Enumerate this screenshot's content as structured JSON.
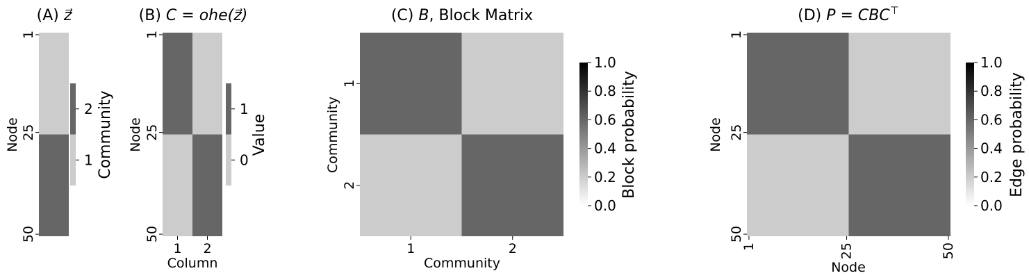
{
  "colors": {
    "low": "#ffffff",
    "high": "#000000"
  },
  "chart_data": [
    {
      "id": "A",
      "type": "heatmap",
      "title_prefix": "(A)",
      "title_math": "z⃗",
      "ylabel": "Node",
      "yticks": [
        "1",
        "25",
        "50"
      ],
      "rows": 50,
      "cols": 1,
      "values": [
        {
          "rows": [
            1,
            25
          ],
          "cols": [
            1,
            1
          ],
          "value": 1
        },
        {
          "rows": [
            26,
            50
          ],
          "cols": [
            1,
            1
          ],
          "value": 2
        }
      ],
      "colorbar": {
        "label": "Community",
        "ticks": [
          "1",
          "2"
        ],
        "levels": [
          1,
          2
        ],
        "fill": [
          0.2,
          0.6
        ]
      }
    },
    {
      "id": "B",
      "type": "heatmap",
      "title_prefix": "(B)",
      "title_math": "C = ohe(z⃗)",
      "ylabel": "Node",
      "xlabel": "Column",
      "yticks": [
        "1",
        "25",
        "50"
      ],
      "xticks": [
        "1",
        "2"
      ],
      "rows": 50,
      "cols": 2,
      "values": [
        {
          "rows": [
            1,
            25
          ],
          "cols": [
            1,
            1
          ],
          "value": 1
        },
        {
          "rows": [
            1,
            25
          ],
          "cols": [
            2,
            2
          ],
          "value": 0
        },
        {
          "rows": [
            26,
            50
          ],
          "cols": [
            1,
            1
          ],
          "value": 0
        },
        {
          "rows": [
            26,
            50
          ],
          "cols": [
            2,
            2
          ],
          "value": 1
        }
      ],
      "colorbar": {
        "label": "Value",
        "ticks": [
          "0",
          "1"
        ],
        "levels": [
          0,
          1
        ],
        "fill": [
          0.2,
          0.6
        ]
      }
    },
    {
      "id": "C",
      "type": "heatmap",
      "title_prefix": "(C)",
      "title_math": "B",
      "title_suffix": ", Block Matrix",
      "ylabel": "Community",
      "xlabel": "Community",
      "yticks": [
        "1",
        "2"
      ],
      "xticks": [
        "1",
        "2"
      ],
      "matrix": [
        [
          0.6,
          0.2
        ],
        [
          0.2,
          0.6
        ]
      ],
      "colorbar": {
        "label": "Block probability",
        "range": [
          0,
          1
        ],
        "ticks": [
          "0.0",
          "0.2",
          "0.4",
          "0.6",
          "0.8",
          "1.0"
        ]
      }
    },
    {
      "id": "D",
      "type": "heatmap",
      "title_prefix": "(D)",
      "title_math": "P = CBC",
      "title_sup": "⊤",
      "ylabel": "Node",
      "xlabel": "Node",
      "yticks": [
        "1",
        "25",
        "50"
      ],
      "xticks": [
        "1",
        "25",
        "50"
      ],
      "blocks": [
        {
          "rows": [
            1,
            25
          ],
          "cols": [
            1,
            25
          ],
          "value": 0.6
        },
        {
          "rows": [
            1,
            25
          ],
          "cols": [
            26,
            50
          ],
          "value": 0.2
        },
        {
          "rows": [
            26,
            50
          ],
          "cols": [
            1,
            25
          ],
          "value": 0.2
        },
        {
          "rows": [
            26,
            50
          ],
          "cols": [
            26,
            50
          ],
          "value": 0.6
        }
      ],
      "colorbar": {
        "label": "Edge probability",
        "range": [
          0,
          1
        ],
        "ticks": [
          "0.0",
          "0.2",
          "0.4",
          "0.6",
          "0.8",
          "1.0"
        ]
      }
    }
  ]
}
